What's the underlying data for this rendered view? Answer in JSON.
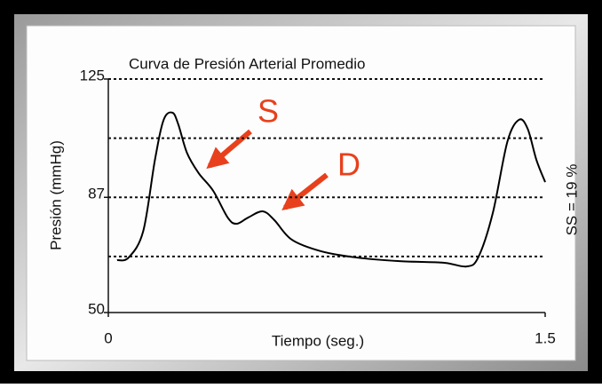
{
  "chart_data": {
    "type": "line",
    "title": "Curva de Presión Arterial Promedio",
    "xlabel": "Tiempo (seg.)",
    "ylabel": "Presión (mmHg)",
    "side_label": "SS = 19 %",
    "annotations": [
      "S",
      "D"
    ],
    "annotation_color": "#e8401c",
    "color": "#000000",
    "x": [
      0.03,
      0.07,
      0.12,
      0.16,
      0.19,
      0.22,
      0.24,
      0.27,
      0.31,
      0.36,
      0.41,
      0.44,
      0.48,
      0.53,
      0.57,
      0.63,
      0.73,
      0.85,
      1.0,
      1.15,
      1.23,
      1.27,
      1.32,
      1.37,
      1.41,
      1.44,
      1.47,
      1.5
    ],
    "values": [
      66.8,
      67.7,
      76.2,
      99,
      111.9,
      114.2,
      110.5,
      101.3,
      94.8,
      89.1,
      80.5,
      78.5,
      80.5,
      82.5,
      79.7,
      73.4,
      69.7,
      67.7,
      66.5,
      66,
      64.8,
      67.7,
      81.9,
      104.8,
      111.9,
      109,
      99,
      91.9
    ],
    "xlim": [
      0,
      1.5
    ],
    "xticks": [
      0,
      1.5
    ],
    "ylim": [
      50,
      125
    ],
    "yticks": [
      50,
      87,
      125
    ],
    "grid": true,
    "grid_lines": [
      68,
      87,
      106,
      125
    ]
  }
}
